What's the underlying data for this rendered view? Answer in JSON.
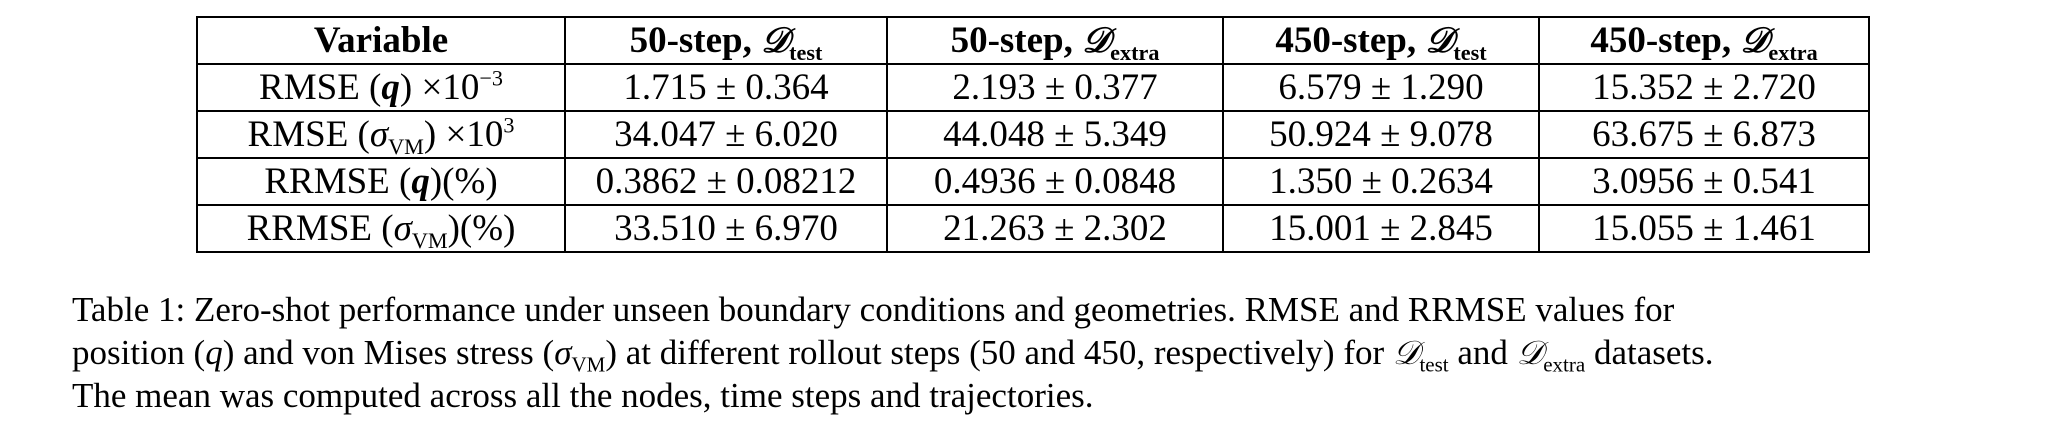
{
  "table": {
    "headers": [
      {
        "prefix": "Variable",
        "script": "",
        "sub": ""
      },
      {
        "prefix": "50-step, ",
        "script": "𝒟",
        "sub": "test"
      },
      {
        "prefix": "50-step, ",
        "script": "𝒟",
        "sub": "extra"
      },
      {
        "prefix": "450-step, ",
        "script": "𝒟",
        "sub": "test"
      },
      {
        "prefix": "450-step, ",
        "script": "𝒟",
        "sub": "extra"
      }
    ],
    "rows": [
      {
        "label": {
          "pre": "RMSE (",
          "sym": "q",
          "sub": "",
          "post": ") ×10",
          "sup": "−3"
        },
        "cells": [
          "1.715 ± 0.364",
          "2.193 ± 0.377",
          "6.579 ± 1.290",
          "15.352 ± 2.720"
        ]
      },
      {
        "label": {
          "pre": "RMSE (",
          "sym": "σ",
          "sub": "VM",
          "post": ") ×10",
          "sup": "3"
        },
        "cells": [
          "34.047 ± 6.020",
          "44.048 ± 5.349",
          "50.924 ± 9.078",
          "63.675 ± 6.873"
        ]
      },
      {
        "label": {
          "pre": "RRMSE (",
          "sym": "q",
          "sub": "",
          "post": ")(%)",
          "sup": ""
        },
        "cells": [
          "0.3862 ± 0.08212",
          "0.4936 ± 0.0848",
          "1.350 ± 0.2634",
          "3.0956 ± 0.541"
        ]
      },
      {
        "label": {
          "pre": "RRMSE (",
          "sym": "σ",
          "sub": "VM",
          "post": ")(%)",
          "sup": ""
        },
        "cells": [
          "33.510 ± 6.970",
          "21.263 ± 2.302",
          "15.001 ± 2.845",
          "15.055 ± 1.461"
        ]
      }
    ]
  },
  "caption": {
    "line1": "Table 1: Zero-shot performance under unseen boundary conditions and geometries. RMSE and RRMSE values for",
    "line2": {
      "t1": "position (",
      "q": "q",
      "t2": ") and von Mises stress (",
      "sigma": "σ",
      "sigma_sub": "VM",
      "t3": ") at different rollout steps (50 and 450, respectively) for ",
      "d1": "𝒟",
      "d1_sub": "test",
      "t4": " and ",
      "d2": "𝒟",
      "d2_sub": "extra",
      "t5": " datasets."
    },
    "line3": "The mean was computed across all the nodes, time steps and trajectories."
  }
}
